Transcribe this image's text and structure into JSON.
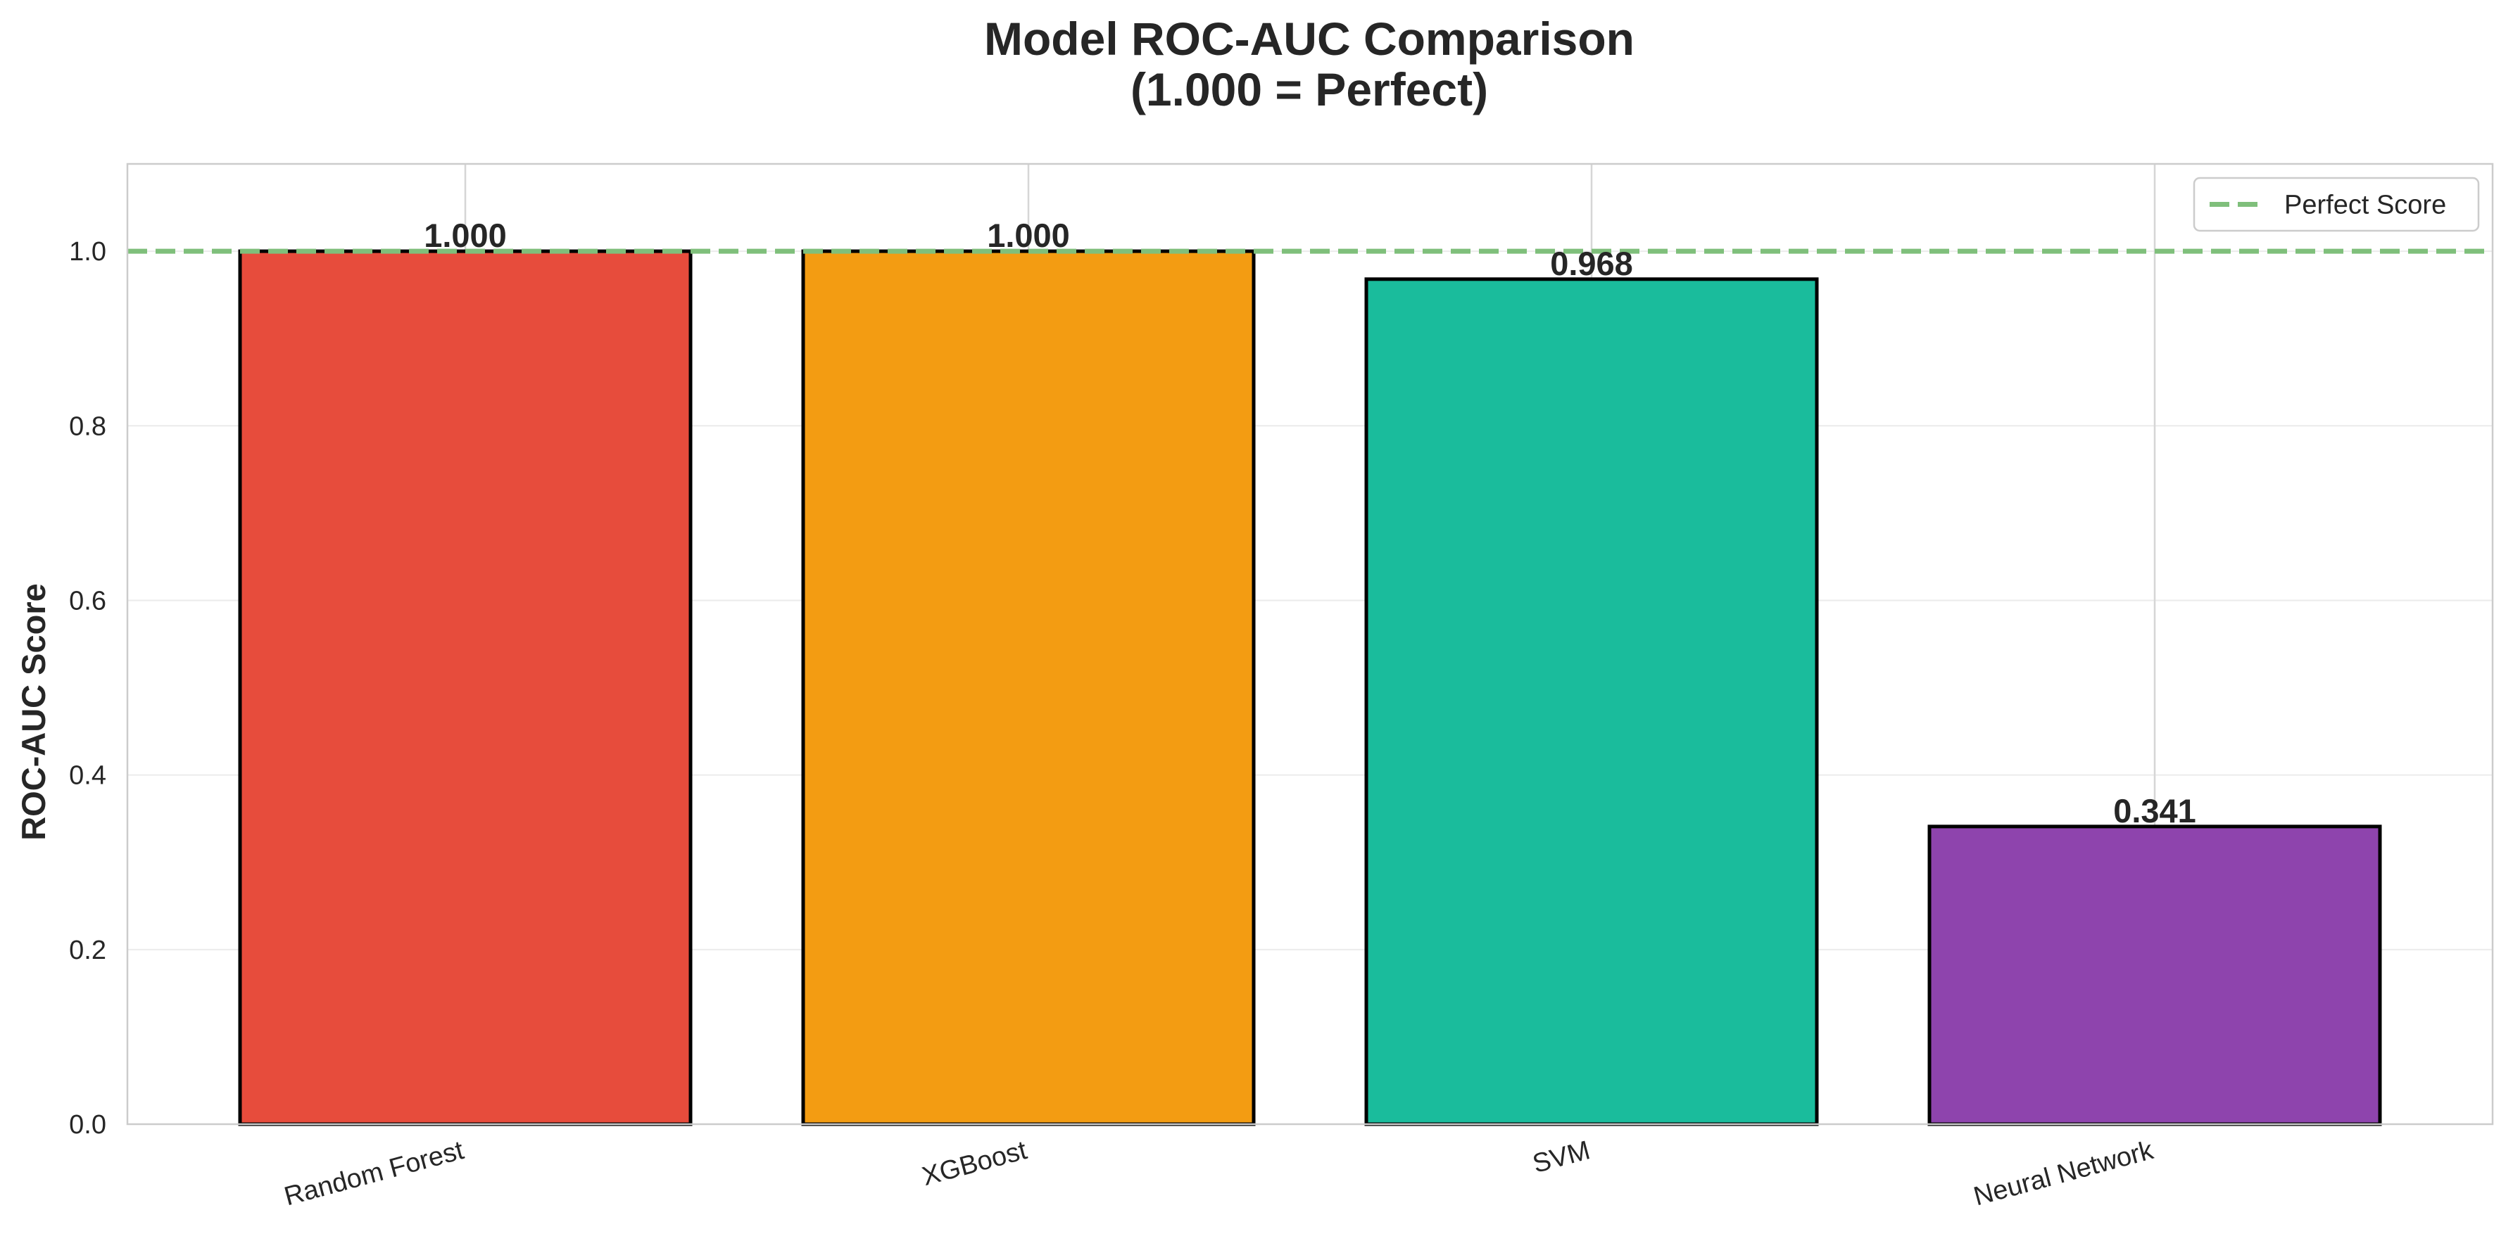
{
  "chart_data": {
    "type": "bar",
    "title": [
      "Model ROC-AUC Comparison",
      "(1.000 = Perfect)"
    ],
    "xlabel": "",
    "ylabel": "ROC-AUC Score",
    "ylim": [
      0.0,
      1.1
    ],
    "yticks": [
      0.0,
      0.2,
      0.4,
      0.6,
      0.8,
      1.0
    ],
    "ytick_labels": [
      "0.0",
      "0.2",
      "0.4",
      "0.6",
      "0.8",
      "1.0"
    ],
    "categories": [
      "Random Forest",
      "XGBoost",
      "SVM",
      "Neural Network"
    ],
    "values": [
      1.0,
      1.0,
      0.968,
      0.341
    ],
    "value_labels": [
      "1.000",
      "1.000",
      "0.968",
      "0.341"
    ],
    "bar_colors": [
      "#e74c3c",
      "#f39c12",
      "#1abc9c",
      "#8e44ad"
    ],
    "bar_edge_color": "#000000",
    "reference_line": {
      "value": 1.0,
      "label": "Perfect Score",
      "color": "#7fbf7b",
      "style": "dashed"
    },
    "legend": {
      "position": "top-right",
      "entries": [
        "Perfect Score"
      ]
    },
    "grid": true,
    "xtick_rotation": 15
  }
}
